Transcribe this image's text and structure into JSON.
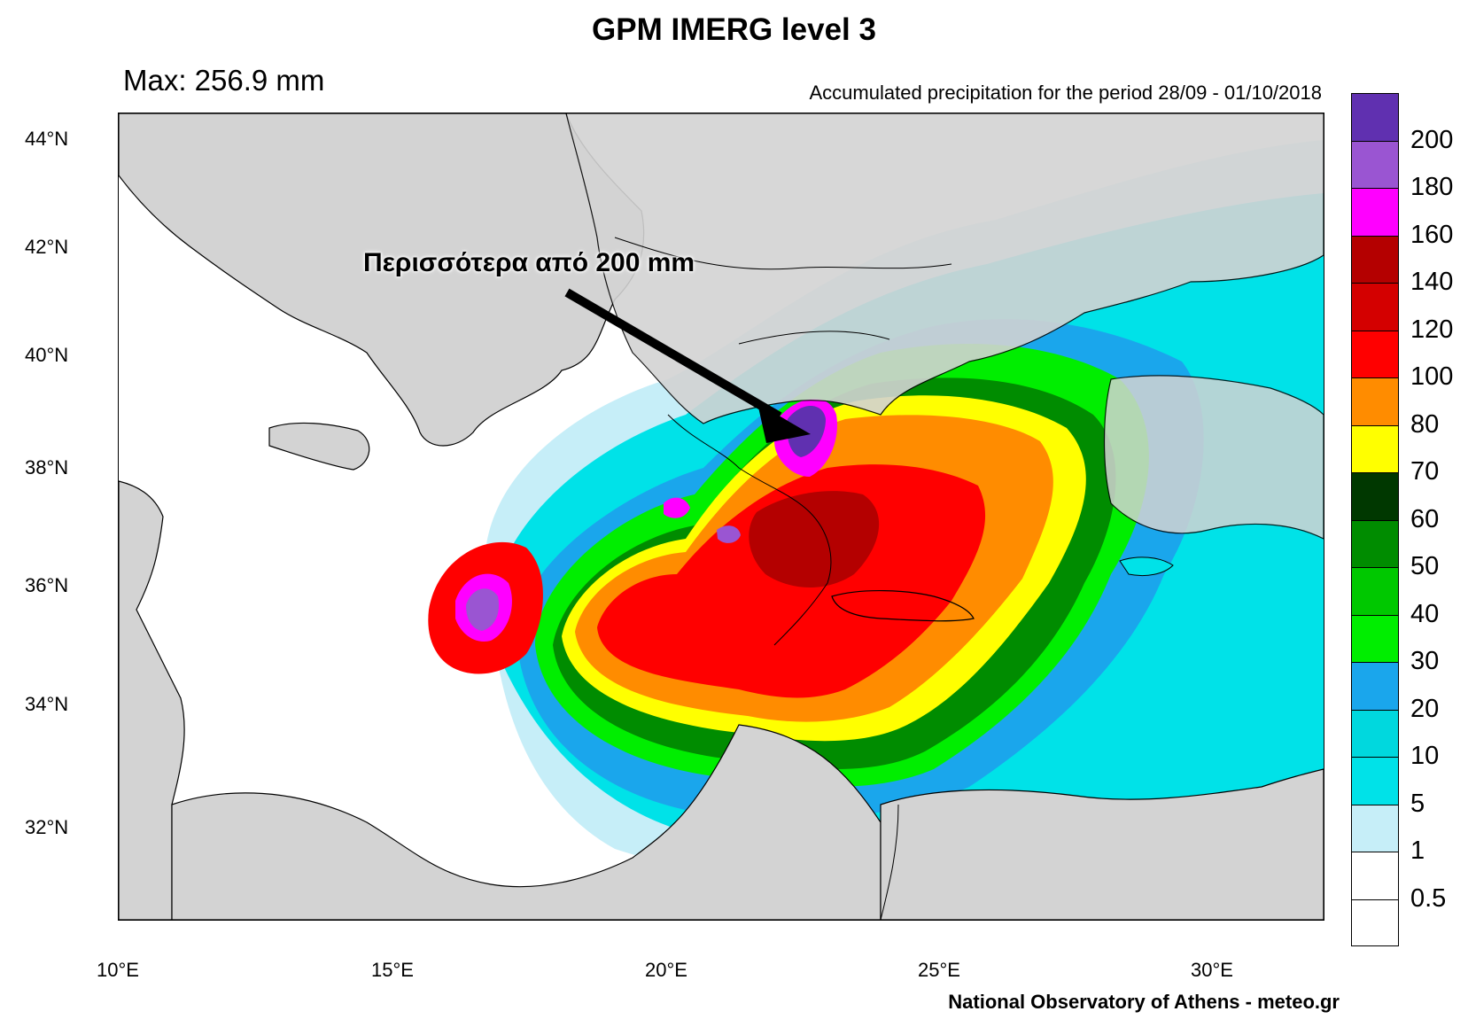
{
  "title": "GPM IMERG level 3",
  "max_label": "Max: 256.9 mm",
  "period_label": "Accumulated precipitation for the period 28/09 - 01/10/2018",
  "credit": "National Observatory of Athens - meteo.gr",
  "annotation": "Περισσότερα από 200 mm",
  "lat_labels": [
    "44°N",
    "42°N",
    "40°N",
    "38°N",
    "36°N",
    "34°N",
    "32°N"
  ],
  "lon_labels": [
    "10°E",
    "15°E",
    "20°E",
    "25°E",
    "30°E"
  ],
  "map": {
    "lon_range": [
      10,
      32
    ],
    "lat_range": [
      30.5,
      44.5
    ],
    "land_color": "#d3d3d3",
    "sea_color": "#ffffff"
  },
  "colorbar": {
    "levels": [
      "0.5",
      "1",
      "5",
      "10",
      "20",
      "30",
      "40",
      "50",
      "60",
      "70",
      "80",
      "100",
      "120",
      "140",
      "160",
      "180",
      "200"
    ],
    "colors": [
      "#ffffff",
      "#ffffff",
      "#c6eef8",
      "#00e2e8",
      "#00d8de",
      "#1aa6ec",
      "#00ee00",
      "#00c800",
      "#008c00",
      "#003800",
      "#ffff00",
      "#ff8c00",
      "#ff0000",
      "#d40000",
      "#b40000",
      "#ff00ff",
      "#9a55d2",
      "#6030b0"
    ]
  }
}
